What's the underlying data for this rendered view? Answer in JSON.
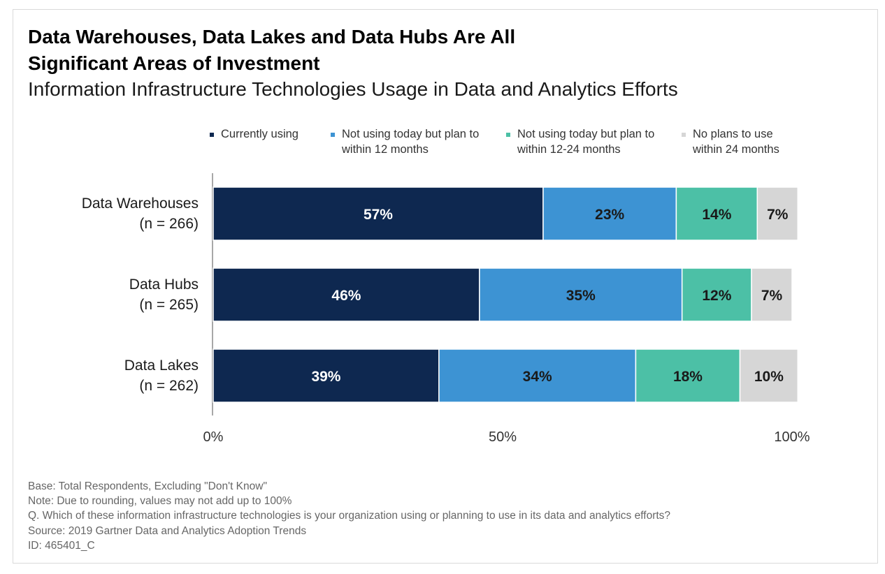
{
  "header": {
    "title_line1": "Data Warehouses, Data Lakes and Data Hubs Are All",
    "title_line2": "Significant Areas of Investment",
    "subtitle": "Information Infrastructure Technologies Usage in Data and Analytics Efforts"
  },
  "legend": [
    {
      "line1": "Currently using",
      "line2": "",
      "color": "#0e2850"
    },
    {
      "line1": "Not using today but plan to",
      "line2": "within 12 months",
      "color": "#3d93d3"
    },
    {
      "line1": "Not using today but plan to",
      "line2": "within 12-24 months",
      "color": "#4cc0a6"
    },
    {
      "line1": "No plans to use",
      "line2": "within 24 months",
      "color": "#d6d6d6"
    }
  ],
  "chart_data": {
    "type": "bar",
    "orientation": "horizontal",
    "stacked": true,
    "categories": [
      {
        "label": "Data Warehouses",
        "n_label": "(n = 266)"
      },
      {
        "label": "Data Hubs",
        "n_label": "(n = 265)"
      },
      {
        "label": "Data Lakes",
        "n_label": "(n = 262)"
      }
    ],
    "series": [
      {
        "name": "Currently using",
        "color": "#0e2850",
        "label_color": "#ffffff",
        "values": [
          57,
          46,
          39
        ],
        "labels": [
          "57%",
          "46%",
          "39%"
        ]
      },
      {
        "name": "Not using today but plan to within 12 months",
        "color": "#3d93d3",
        "label_color": "#1a1a1a",
        "values": [
          23,
          35,
          34
        ],
        "labels": [
          "23%",
          "35%",
          "34%"
        ]
      },
      {
        "name": "Not using today but plan to within 12-24 months",
        "color": "#4cc0a6",
        "label_color": "#1a1a1a",
        "values": [
          14,
          12,
          18
        ],
        "labels": [
          "14%",
          "12%",
          "18%"
        ]
      },
      {
        "name": "No plans to use within 24 months",
        "color": "#d6d6d6",
        "label_color": "#1a1a1a",
        "values": [
          7,
          7,
          10
        ],
        "labels": [
          "7%",
          "7%",
          "10%"
        ]
      }
    ],
    "xlim": [
      0,
      100
    ],
    "x_ticks": [
      0,
      50,
      100
    ],
    "x_tick_labels": [
      "0%",
      "50%",
      "100%"
    ],
    "grid": false,
    "legend_position": "top"
  },
  "footnotes": [
    "Base: Total Respondents, Excluding \"Don't Know\"",
    "Note: Due to rounding, values may not add up to 100%",
    "Q. Which of these information infrastructure technologies is your organization using or planning to use in its data and analytics efforts?",
    "Source: 2019 Gartner Data and Analytics Adoption Trends",
    "ID: 465401_C"
  ]
}
